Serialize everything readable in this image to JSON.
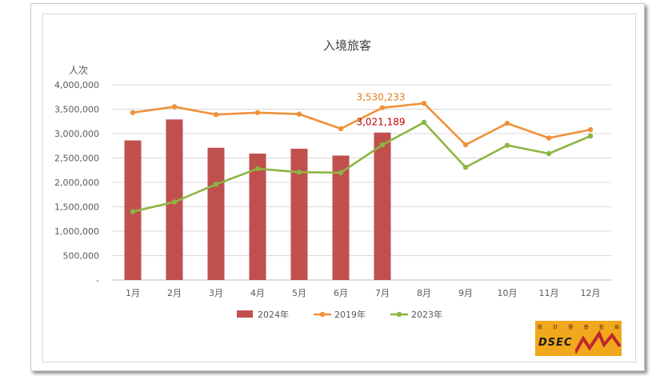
{
  "chart_data": {
    "type": "bar",
    "title": "入境旅客",
    "ylabel": "人次",
    "xlabel": "",
    "categories": [
      "1月",
      "2月",
      "3月",
      "4月",
      "5月",
      "6月",
      "7月",
      "8月",
      "9月",
      "10月",
      "11月",
      "12月"
    ],
    "ylim": [
      0,
      4000000
    ],
    "yticks": [
      0,
      500000,
      1000000,
      1500000,
      2000000,
      2500000,
      3000000,
      3500000,
      4000000
    ],
    "ytick_labels": [
      "-",
      "500,000",
      "1,000,000",
      "1,500,000",
      "2,000,000",
      "2,500,000",
      "3,000,000",
      "3,500,000",
      "4,000,000"
    ],
    "grid": true,
    "legend_position": "bottom",
    "series": [
      {
        "name": "2024年",
        "kind": "bar",
        "color": "#c0504d",
        "values": [
          2860000,
          3290000,
          2710000,
          2590000,
          2690000,
          2550000,
          3021189,
          null,
          null,
          null,
          null,
          null
        ]
      },
      {
        "name": "2019年",
        "kind": "line",
        "color": "#f0913a",
        "values": [
          3430000,
          3550000,
          3390000,
          3430000,
          3400000,
          3100000,
          3530233,
          3620000,
          2770000,
          3210000,
          2910000,
          3080000
        ]
      },
      {
        "name": "2023年",
        "kind": "line",
        "color": "#8db542",
        "values": [
          1400000,
          1600000,
          1960000,
          2280000,
          2210000,
          2200000,
          2770000,
          3230000,
          2310000,
          2760000,
          2590000,
          2950000
        ]
      }
    ],
    "annotations": [
      {
        "text": "3,530,233",
        "series": "2019年",
        "index": 6,
        "color": "#e07b17"
      },
      {
        "text": "3,021,189",
        "series": "2024年",
        "index": 6,
        "color": "#c00000"
      }
    ]
  },
  "logo": {
    "text": "DSEC",
    "chars": [
      "統",
      "計",
      "暨",
      "普",
      "查",
      "局"
    ],
    "color": "#f2a81c"
  }
}
